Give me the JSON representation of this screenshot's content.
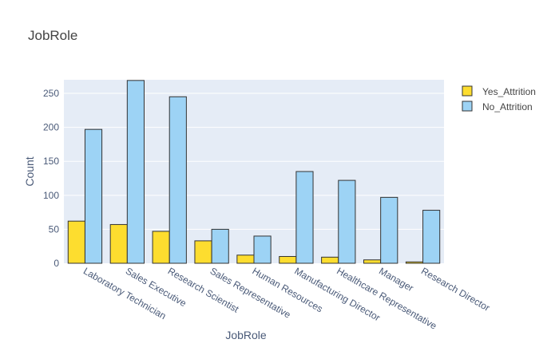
{
  "chart_data": {
    "type": "bar",
    "title": "JobRole",
    "xlabel": "JobRole",
    "ylabel": "Count",
    "ylim": [
      0,
      270
    ],
    "yticks": [
      0,
      50,
      100,
      150,
      200,
      250
    ],
    "grid": true,
    "legend_position": "top-right",
    "categories": [
      "Laboratory Technician",
      "Sales Executive",
      "Research Scientist",
      "Sales Representative",
      "Human Resources",
      "Manufacturing Director",
      "Healthcare Representative",
      "Manager",
      "Research Director"
    ],
    "series": [
      {
        "name": "Yes_Attrition",
        "color": "#fddd2f",
        "values": [
          62,
          57,
          47,
          33,
          12,
          10,
          9,
          5,
          2
        ]
      },
      {
        "name": "No_Attrition",
        "color": "#9dd3f5",
        "values": [
          197,
          269,
          245,
          50,
          40,
          135,
          122,
          97,
          78
        ]
      }
    ]
  },
  "colors": {
    "plot_bg": "#e5ecf6",
    "bar_outline": "#333333"
  }
}
